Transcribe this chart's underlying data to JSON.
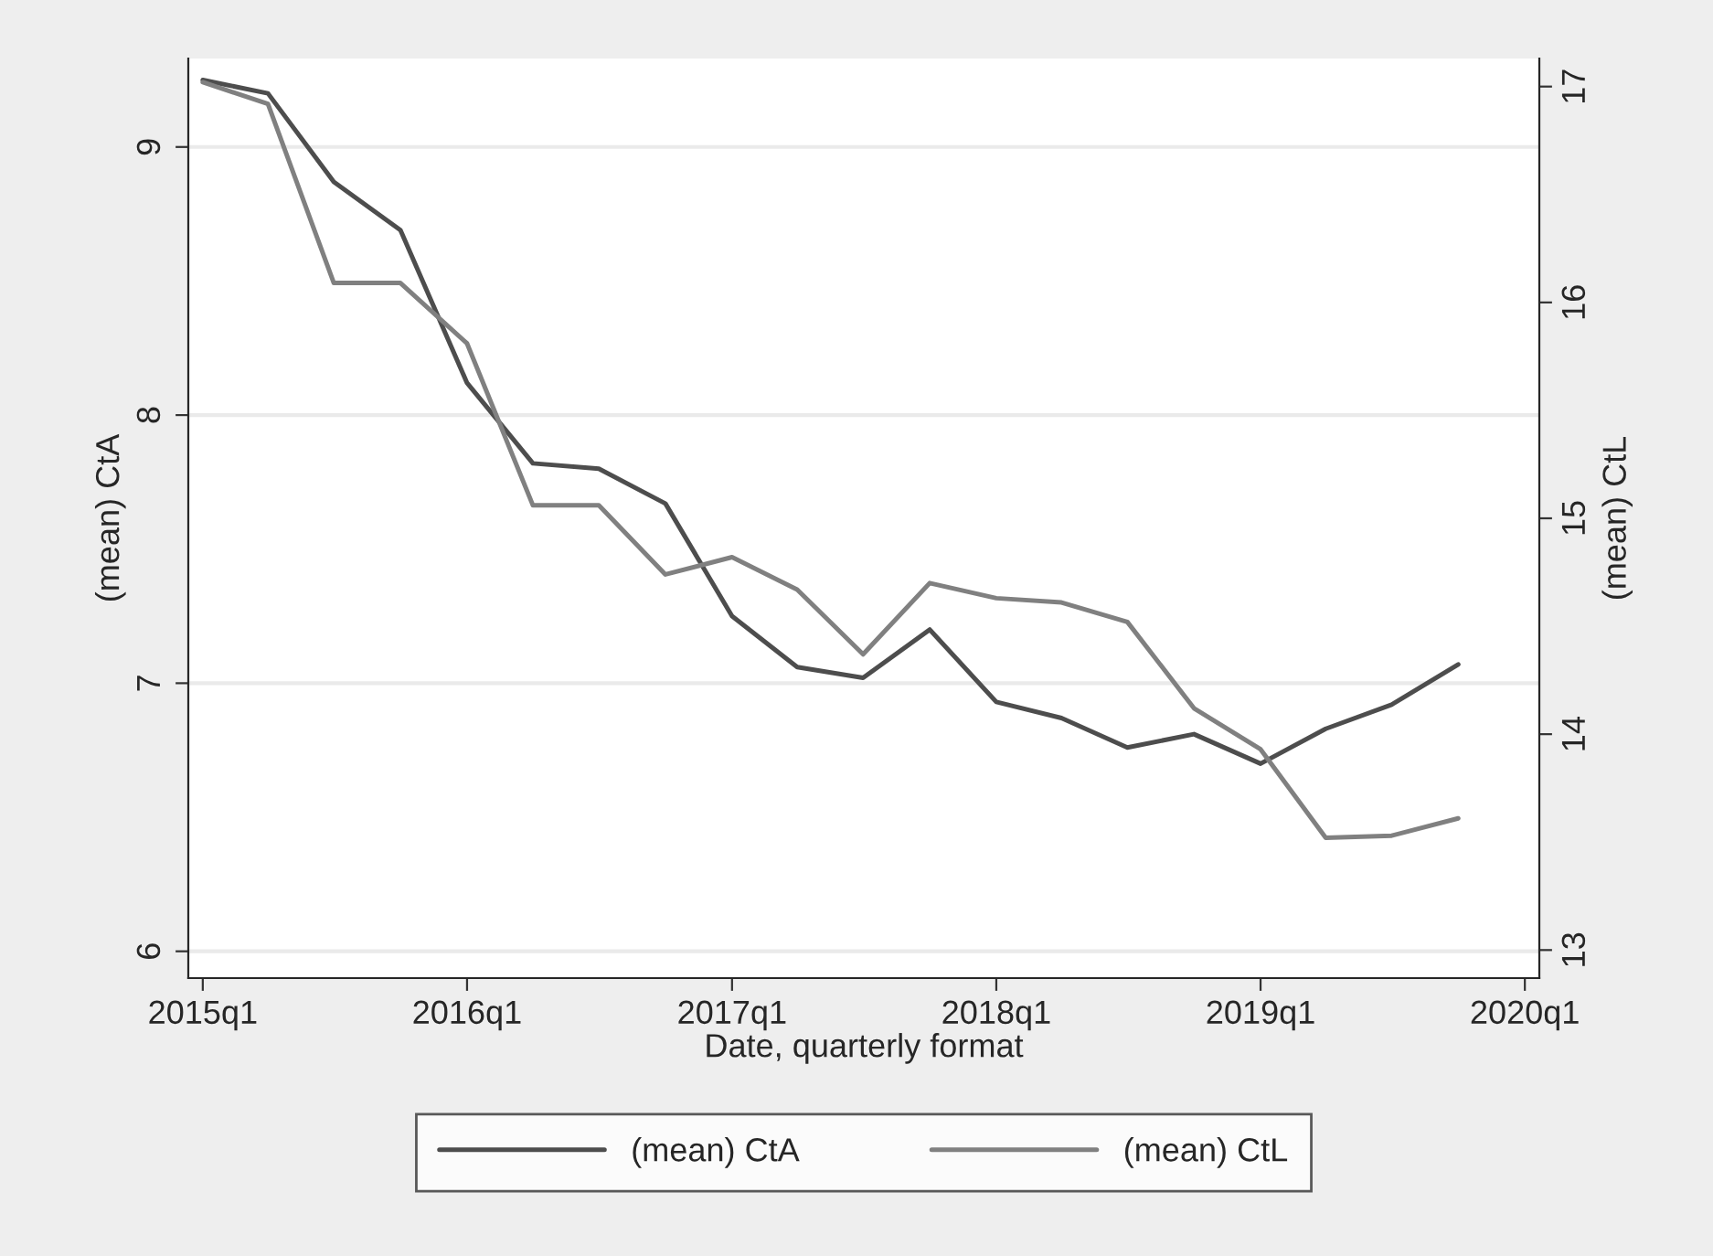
{
  "chart_data": {
    "type": "line",
    "xlabel": "Date, quarterly format",
    "ylabel": "(mean) CtA",
    "y2label": "(mean) CtL",
    "x": [
      "2015-01",
      "2015-04",
      "2015-07",
      "2015-10",
      "2016-01",
      "2016-04",
      "2016-07",
      "2016-10",
      "2017-01",
      "2017-04",
      "2017-07",
      "2017-10",
      "2018-01",
      "2018-04",
      "2018-07",
      "2018-10",
      "2019-01",
      "2019-04",
      "2019-07",
      "2019-10"
    ],
    "series": [
      {
        "name": "(mean) CtA",
        "color": "#4d4d4d",
        "values": [
          9.25,
          9.2,
          8.87,
          8.69,
          8.12,
          7.82,
          7.8,
          7.67,
          7.25,
          7.06,
          7.02,
          7.2,
          6.93,
          6.87,
          6.76,
          6.81,
          6.7,
          6.83,
          6.92,
          7.07
        ]
      },
      {
        "name": "(mean) CtL",
        "color": "#808080",
        "axis": "y2",
        "values": [
          17.02,
          16.92,
          16.09,
          16.09,
          15.81,
          15.06,
          15.06,
          14.74,
          14.82,
          14.67,
          14.37,
          14.7,
          14.63,
          14.61,
          14.52,
          14.12,
          13.93,
          13.52,
          13.53,
          13.61
        ]
      }
    ],
    "xlim": [
      "2014-12-12",
      "2020-01-21"
    ],
    "xticks": [
      {
        "value": "2015-01",
        "label": "2015q1"
      },
      {
        "value": "2016-01",
        "label": "2016q1"
      },
      {
        "value": "2017-01",
        "label": "2017q1"
      },
      {
        "value": "2018-01",
        "label": "2018q1"
      },
      {
        "value": "2019-01",
        "label": "2019q1"
      },
      {
        "value": "2020-01",
        "label": "2020q1"
      }
    ],
    "ylim": [
      5.9,
      9.33
    ],
    "yticks": [
      6,
      7,
      8,
      9
    ],
    "y2lim": [
      12.87,
      17.13
    ],
    "y2ticks": [
      13,
      14,
      15,
      16,
      17
    ],
    "grid": "y",
    "legend": "bottom",
    "marker": "none",
    "line_style": "solid"
  }
}
